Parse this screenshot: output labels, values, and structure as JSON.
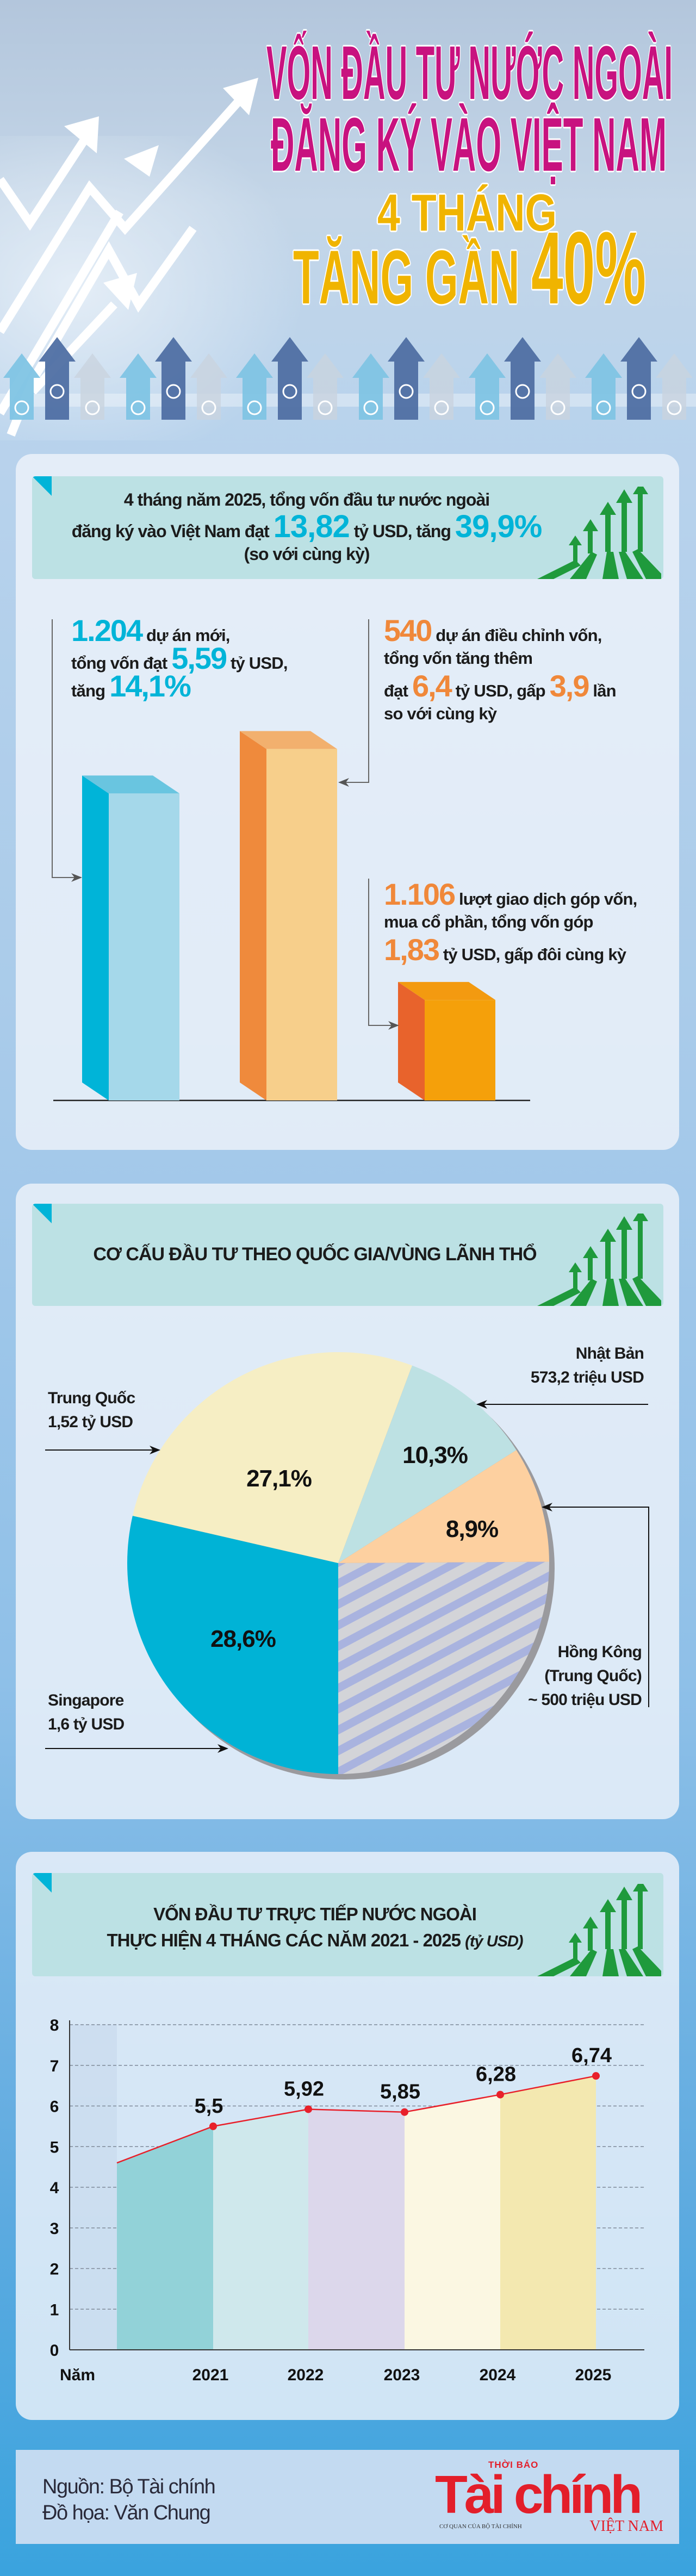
{
  "title": {
    "line1": "VỐN ĐẦU TƯ NƯỚC NGOÀI",
    "line2": "ĐĂNG KÝ VÀO VIỆT NAM",
    "line3": "4 THÁNG",
    "line4_prefix": "TĂNG GẦN",
    "line4_highlight": "40%"
  },
  "summary": {
    "line1": "4 tháng năm 2025, tổng vốn đầu tư nước ngoài",
    "line2_a": "đăng ký vào Việt Nam đạt",
    "value": "13,82",
    "line2_b": "tỷ USD, tăng",
    "pct": "39,9%",
    "line3": "(so với cùng kỳ)"
  },
  "block_new": {
    "num": "1.204",
    "t1": "dự án mới,",
    "t2": "tổng vốn đạt",
    "cap": "5,59",
    "t3": "tỷ USD,",
    "t4": "tăng",
    "pct": "14,1%"
  },
  "block_adjust": {
    "num": "540",
    "t1": "dự án điều chỉnh vốn,",
    "t2": "tổng vốn tăng thêm",
    "t3": "đạt",
    "cap": "6,4",
    "t4": "tỷ USD, gấp",
    "mult": "3,9",
    "t5": "lần",
    "t6": "so với cùng kỳ"
  },
  "block_contrib": {
    "num": "1.106",
    "t1": "lượt giao dịch góp vốn,",
    "t2": "mua cổ phần, tổng vốn góp",
    "cap": "1,83",
    "t3": "tỷ USD, gấp đôi cùng kỳ"
  },
  "chart_data": [
    {
      "type": "bar",
      "values": [
        5.59,
        6.4,
        1.83
      ],
      "colors": [
        {
          "side": "#00b4d8",
          "front": "#a5d8ea",
          "top": "#69c5e0"
        },
        {
          "side": "#ef8a3c",
          "front": "#f7cf8b",
          "top": "#f2b06e"
        },
        {
          "side": "#e8632c",
          "front": "#f5a00a",
          "top": "#f39a10"
        }
      ]
    },
    {
      "type": "pie",
      "title": "CƠ CẤU ĐẦU TƯ THEO QUỐC GIA/VÙNG LÃNH THỔ",
      "slices": [
        {
          "name": "Singapore",
          "amount": "1,6 tỷ USD",
          "label": "28,6%",
          "value": 28.6,
          "color": "#00b3d6"
        },
        {
          "name": "Trung Quốc",
          "amount": "1,52 tỷ USD",
          "label": "27,1%",
          "value": 27.1,
          "color": "#f6eec4"
        },
        {
          "name": "Nhật Bản",
          "amount": "573,2 triệu USD",
          "label": "10,3%",
          "value": 10.3,
          "color": "#bde1e3"
        },
        {
          "name": "",
          "amount": "",
          "label": "8,9%",
          "value": 8.9,
          "color": "#fdd0a0"
        },
        {
          "name": "Hồng Kông",
          "name2": "(Trung Quốc)",
          "amount": "~ 500 triệu USD",
          "label": "",
          "value": 25.1,
          "color": "striped"
        }
      ]
    },
    {
      "type": "area",
      "title_line1": "VỐN ĐẦU TƯ TRỰC TIẾP NƯỚC NGOÀI",
      "title_line2": "THỰC HIỆN 4 THÁNG CÁC NĂM 2021 - 2025",
      "unit": "(tỷ USD)",
      "xlabel": "Năm",
      "categories": [
        "2021",
        "2022",
        "2023",
        "2024",
        "2025"
      ],
      "values": [
        5.5,
        5.92,
        5.85,
        6.28,
        6.74
      ],
      "value_labels": [
        "5,5",
        "5,92",
        "5,85",
        "6,28",
        "6,74"
      ],
      "lead_in_value": 4.6,
      "ylim": [
        0,
        8
      ],
      "yticks": [
        "0",
        "1",
        "2",
        "3",
        "4",
        "5",
        "6",
        "7",
        "8"
      ],
      "grid": true,
      "line_color": "#e8202a",
      "area_colors": [
        "#92d2d8",
        "#cfe8ec",
        "#dcd7eb",
        "#fbf7e2",
        "#f3e8b0"
      ]
    }
  ],
  "footer": {
    "source": "Nguồn: Bộ Tài chính",
    "graphics": "Đồ họa: Văn Chung"
  },
  "logo": {
    "top": "THỜI BÁO",
    "main": "Tài chính",
    "sub": "CƠ QUAN CỦA BỘ TÀI CHÍNH",
    "country": "VIỆT NAM",
    "color": "#e31e2a"
  }
}
